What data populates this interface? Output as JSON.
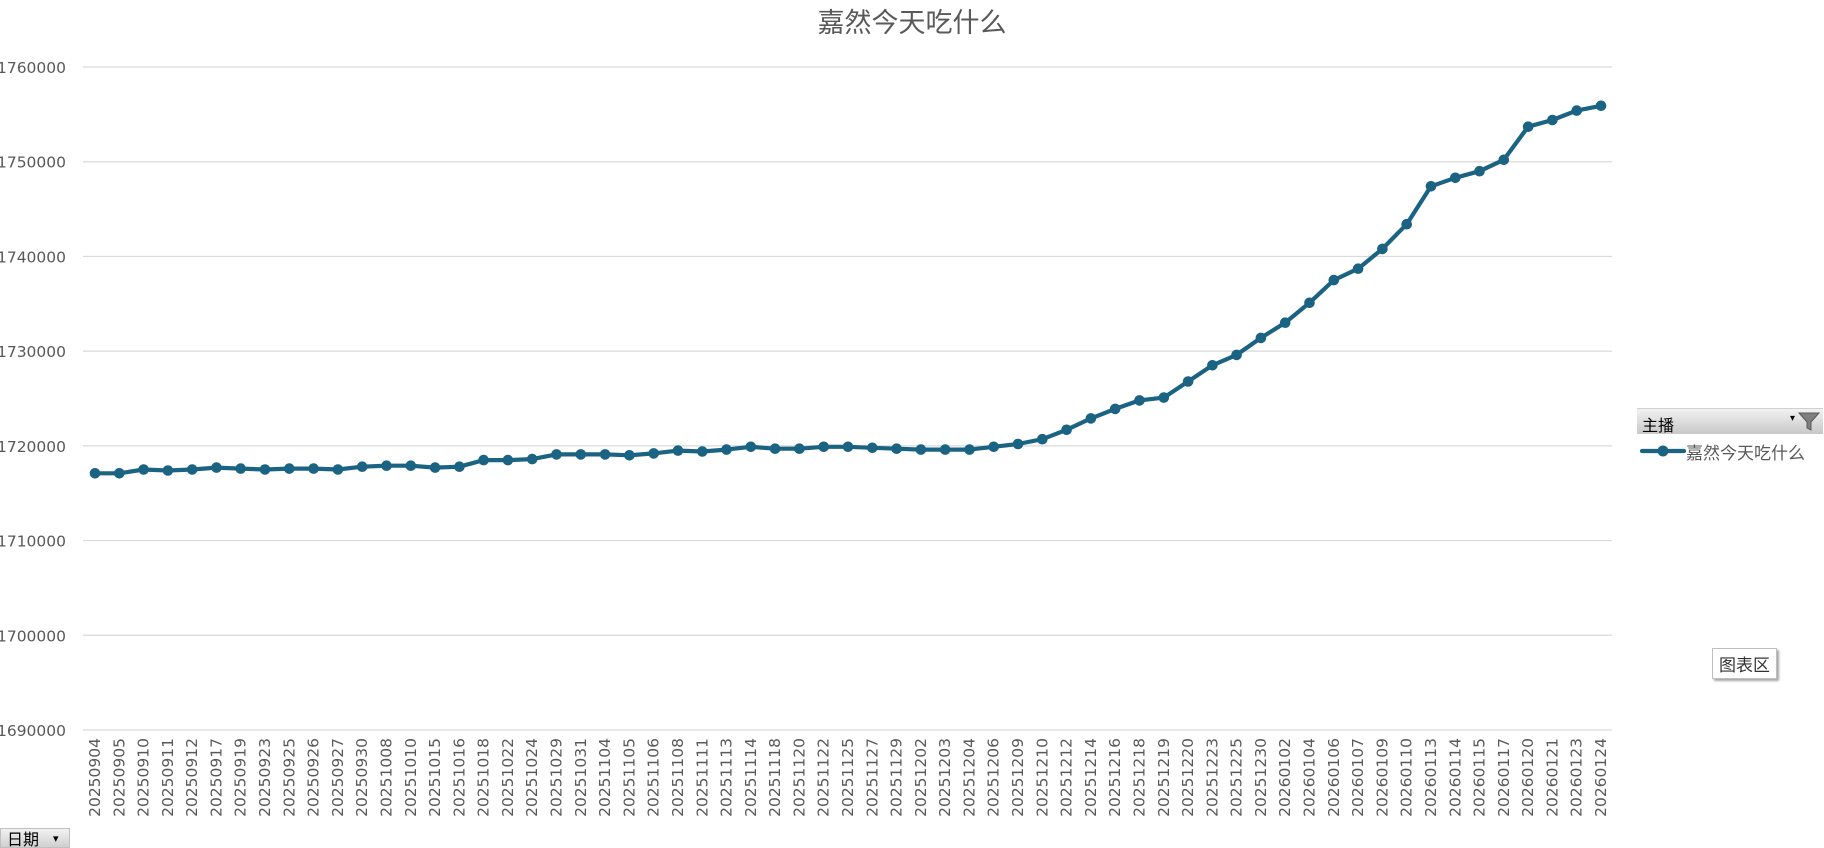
{
  "chart_data": {
    "type": "line",
    "title": "嘉然今天吃什么",
    "ylim": [
      1690000,
      1760000
    ],
    "y_ticks": [
      1690000,
      1700000,
      1710000,
      1720000,
      1730000,
      1740000,
      1750000,
      1760000
    ],
    "y_tick_labels": [
      "1690000",
      "1700000",
      "1710000",
      "1720000",
      "1730000",
      "1740000",
      "1750000",
      "1760000"
    ],
    "grid": true,
    "legend_position": "right",
    "x": [
      "20250904",
      "20250905",
      "20250910",
      "20250911",
      "20250912",
      "20250917",
      "20250919",
      "20250923",
      "20250925",
      "20250926",
      "20250927",
      "20250930",
      "20251008",
      "20251010",
      "20251015",
      "20251016",
      "20251018",
      "20251022",
      "20251024",
      "20251029",
      "20251031",
      "20251104",
      "20251105",
      "20251106",
      "20251108",
      "20251111",
      "20251113",
      "20251114",
      "20251118",
      "20251120",
      "20251122",
      "20251125",
      "20251127",
      "20251129",
      "20251202",
      "20251203",
      "20251204",
      "20251206",
      "20251209",
      "20251210",
      "20251212",
      "20251214",
      "20251216",
      "20251218",
      "20251219",
      "20251220",
      "20251223",
      "20251225",
      "20251230",
      "20260102",
      "20260104",
      "20260106",
      "20260107",
      "20260109",
      "20260110",
      "20260113",
      "20260114",
      "20260115",
      "20260117",
      "20260120",
      "20260121",
      "20260123",
      "20260124"
    ],
    "series": [
      {
        "name": "嘉然今天吃什么",
        "color": "#1b6383",
        "values": [
          1717100,
          1717100,
          1717500,
          1717400,
          1717500,
          1717700,
          1717600,
          1717500,
          1717600,
          1717600,
          1717500,
          1717800,
          1717900,
          1717900,
          1717700,
          1717800,
          1718500,
          1718500,
          1718600,
          1719100,
          1719100,
          1719100,
          1719000,
          1719200,
          1719500,
          1719400,
          1719600,
          1719900,
          1719700,
          1719700,
          1719900,
          1719900,
          1719800,
          1719700,
          1719600,
          1719600,
          1719600,
          1719900,
          1720200,
          1720700,
          1721700,
          1722900,
          1723900,
          1724800,
          1725100,
          1726800,
          1728500,
          1729600,
          1731400,
          1733000,
          1735100,
          1737500,
          1738700,
          1740800,
          1743400,
          1747400,
          1748300,
          1749000,
          1750200,
          1753700,
          1754400,
          1755400,
          1755900
        ]
      }
    ]
  },
  "legend": {
    "header_label": "主播",
    "entries": [
      "嘉然今天吃什么"
    ]
  },
  "chart_area_label": "图表区",
  "date_field_button_label": "日期",
  "icons": {
    "filter": "filter-icon",
    "dropdown": "chevron-down-icon"
  }
}
